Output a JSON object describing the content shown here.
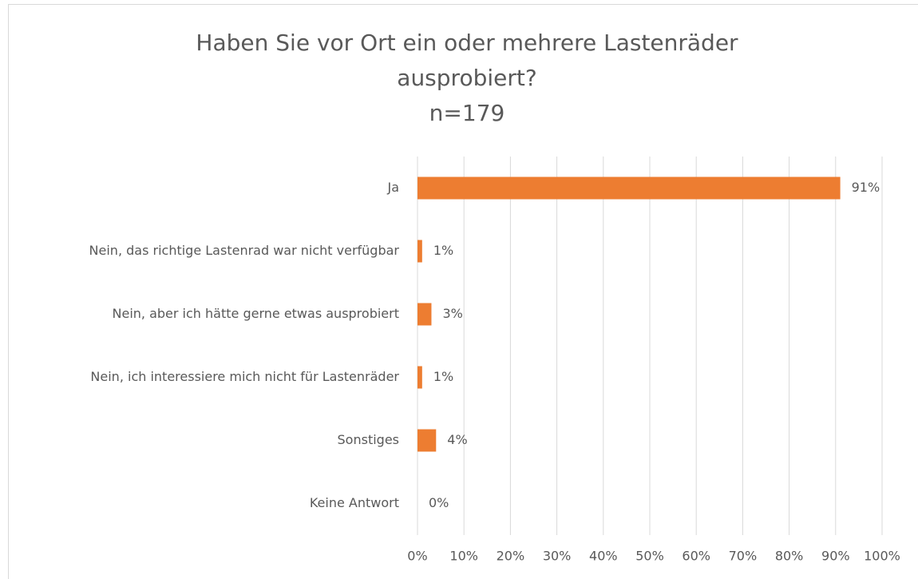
{
  "chart_data": {
    "type": "bar",
    "orientation": "horizontal",
    "title": "Haben Sie vor Ort ein oder mehrere Lastenräder ausprobiert?",
    "subtitle": "n=179",
    "categories": [
      "Ja",
      "Nein, das richtige Lastenrad war nicht verfügbar",
      "Nein, aber ich hätte gerne etwas ausprobiert",
      "Nein, ich interessiere mich nicht für Lastenräder",
      "Sonstiges",
      "Keine Antwort"
    ],
    "values": [
      91,
      1,
      3,
      1,
      4,
      0
    ],
    "value_labels": [
      "91%",
      "1%",
      "3%",
      "1%",
      "4%",
      "0%"
    ],
    "color": "#ed7d31",
    "xlim": [
      0,
      100
    ],
    "xticks": [
      {
        "value": 0,
        "label": "0%"
      },
      {
        "value": 10,
        "label": "10%"
      },
      {
        "value": 20,
        "label": "20%"
      },
      {
        "value": 30,
        "label": "30%"
      },
      {
        "value": 40,
        "label": "40%"
      },
      {
        "value": 50,
        "label": "50%"
      },
      {
        "value": 60,
        "label": "60%"
      },
      {
        "value": 70,
        "label": "70%"
      },
      {
        "value": 80,
        "label": "80%"
      },
      {
        "value": 90,
        "label": "90%"
      },
      {
        "value": 100,
        "label": "100%"
      }
    ],
    "grid": true
  }
}
